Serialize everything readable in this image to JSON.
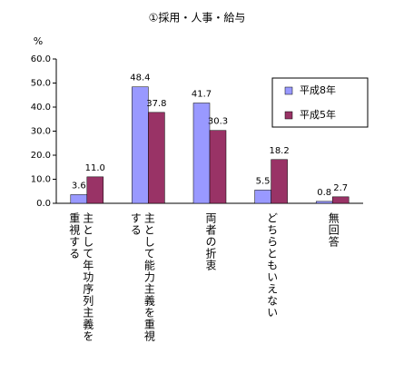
{
  "chart_data": {
    "type": "bar",
    "title": "①採用・人事・給与",
    "y_unit": "%",
    "categories": [
      "主として年功序列主義を重視する",
      "主として能力主義を重視する",
      "両者の折衷",
      "どちらともいえない",
      "無回答"
    ],
    "series": [
      {
        "name": "平成8年",
        "color": "#9999ff",
        "values": [
          3.6,
          48.4,
          41.7,
          5.5,
          0.8
        ],
        "value_labels": [
          "3.6",
          "48.4",
          "41.7",
          "5.5",
          "0.8"
        ]
      },
      {
        "name": "平成5年",
        "color": "#993366",
        "values": [
          11,
          37.8,
          30.3,
          18.2,
          2.7
        ],
        "value_labels": [
          "11.0",
          "37.8",
          "30.3",
          "18.2",
          "2.7"
        ]
      }
    ],
    "ylim": [
      0,
      60
    ],
    "yticks": [
      {
        "value": 0,
        "label": "0.0"
      },
      {
        "value": 10,
        "label": "10.0"
      },
      {
        "value": 20,
        "label": "20.0"
      },
      {
        "value": 30,
        "label": "30.0"
      },
      {
        "value": 40,
        "label": "40.0"
      },
      {
        "value": 50,
        "label": "50.0"
      },
      {
        "value": 60,
        "label": "60.0"
      }
    ],
    "grid": false
  }
}
